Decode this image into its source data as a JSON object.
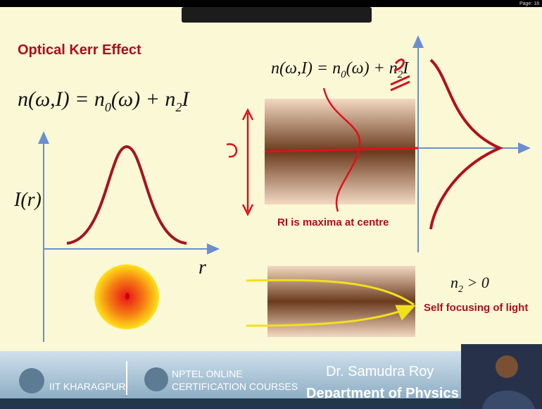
{
  "page_label": "Page: 18",
  "slide": {
    "title": "Optical Kerr Effect",
    "equation_left": {
      "lhs": "n(ω,I) = n",
      "sub1": "0",
      "mid": "(ω) + n",
      "sub2": "2",
      "rhs": "I"
    },
    "y_axis_label": "I(r)",
    "x_axis_label": "r",
    "equation_right": {
      "lhs": "n(ω,I) = n",
      "sub1": "0",
      "mid": "(ω) + n",
      "sub2": "2",
      "rhs": "I"
    },
    "ri_note": "RI is maxima at centre",
    "condition": {
      "lhs": "n",
      "sub": "2",
      "rhs": " > 0"
    },
    "self_focus_note": "Self focusing of light"
  },
  "banner": {
    "institute": "IIT KHARAGPUR",
    "nptel_line1": "NPTEL ONLINE",
    "nptel_line2": "CERTIFICATION COURSES",
    "speaker": "Dr. Samudra Roy",
    "department": "Department of Physics"
  }
}
